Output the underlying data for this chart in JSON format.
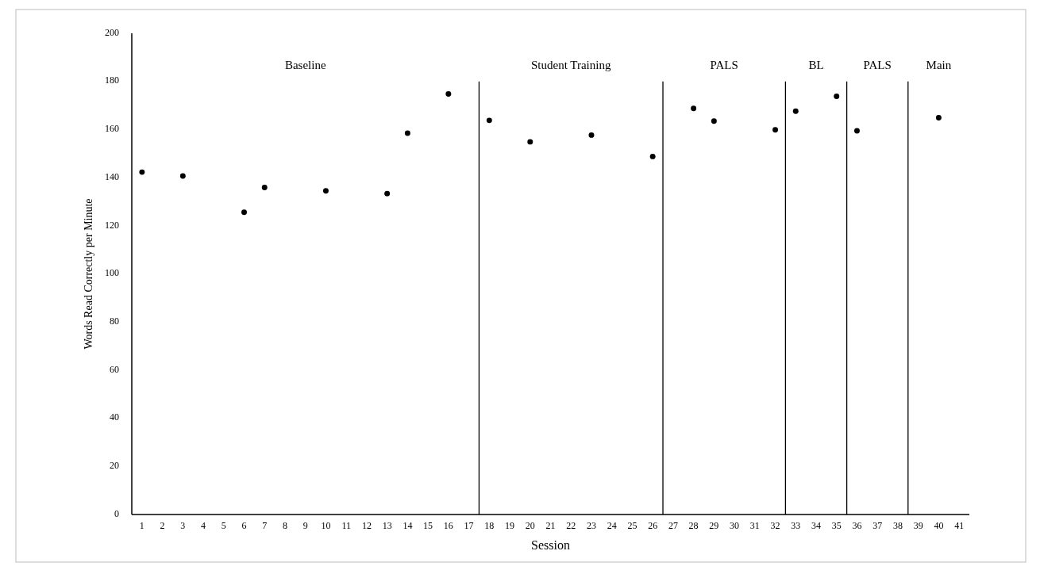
{
  "chart_data": {
    "type": "scatter",
    "xlabel": "Session",
    "ylabel": "Words Read Correctly per Minute",
    "x": [
      1,
      3,
      6,
      7,
      10,
      13,
      14,
      16,
      18,
      20,
      23,
      26,
      28,
      29,
      32,
      33,
      35,
      36,
      40
    ],
    "values": [
      142.3,
      140.7,
      125.6,
      135.9,
      134.5,
      133.4,
      158.5,
      174.8,
      163.8,
      154.9,
      157.7,
      148.8,
      168.8,
      163.5,
      159.9,
      167.6,
      173.8,
      159.5,
      164.9
    ],
    "color": "#000000",
    "marker": "circle",
    "xlim": [
      0.5,
      41.5
    ],
    "xticks": [
      1,
      2,
      3,
      4,
      5,
      6,
      7,
      8,
      9,
      10,
      11,
      12,
      13,
      14,
      15,
      16,
      17,
      18,
      19,
      20,
      21,
      22,
      23,
      24,
      25,
      26,
      27,
      28,
      29,
      30,
      31,
      32,
      33,
      34,
      35,
      36,
      37,
      38,
      39,
      40,
      41
    ],
    "ylim": [
      0,
      200
    ],
    "yticks": [
      0,
      20,
      40,
      60,
      80,
      100,
      120,
      140,
      160,
      180,
      200
    ],
    "ref_lines": [
      {
        "axis": "x",
        "value": 17.5,
        "color": "#000000"
      },
      {
        "axis": "x",
        "value": 26.5,
        "color": "#000000"
      },
      {
        "axis": "x",
        "value": 32.5,
        "color": "#000000"
      },
      {
        "axis": "x",
        "value": 35.5,
        "color": "#000000"
      },
      {
        "axis": "x",
        "value": 38.5,
        "color": "#000000"
      }
    ],
    "annotations": [
      "Baseline",
      "Student Training",
      "PALS",
      "BL",
      "PALS",
      "Main"
    ]
  }
}
